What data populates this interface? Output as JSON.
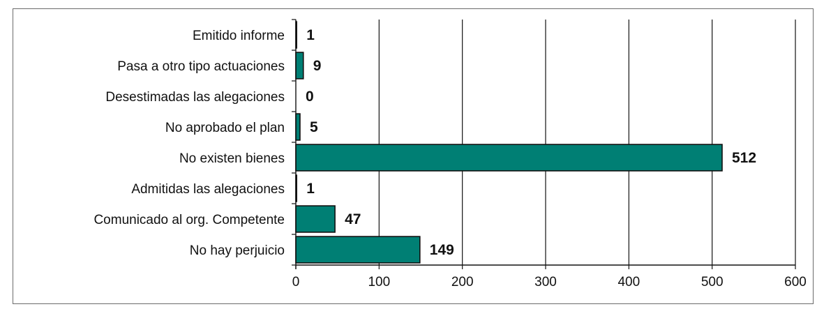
{
  "chart_data": {
    "type": "bar",
    "orientation": "horizontal",
    "categories": [
      "Emitido informe",
      "Pasa a otro tipo actuaciones",
      "Desestimadas las alegaciones",
      "No aprobado el plan",
      "No existen bienes",
      "Admitidas las alegaciones",
      "Comunicado al org. Competente",
      "No hay perjuicio"
    ],
    "values": [
      1,
      9,
      0,
      5,
      512,
      1,
      47,
      149
    ],
    "xlim": [
      0,
      600
    ],
    "xticks": [
      0,
      100,
      200,
      300,
      400,
      500,
      600
    ],
    "grid": "vertical",
    "legend": "none",
    "bar_color": "#007f74",
    "bar_edge_color": "#111111"
  }
}
